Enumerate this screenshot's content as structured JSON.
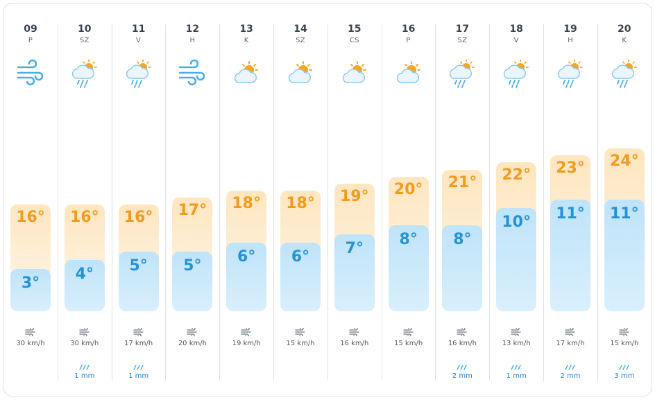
{
  "days": [
    {
      "num": "09",
      "wd": "P",
      "icon": "wind-icon",
      "high": "16°",
      "low": "3°",
      "high_val": 16,
      "low_val": 3,
      "wind": "30 km/h",
      "rain": ""
    },
    {
      "num": "10",
      "wd": "SZ",
      "icon": "rain-cloud-sun-icon",
      "high": "16°",
      "low": "4°",
      "high_val": 16,
      "low_val": 4,
      "wind": "30 km/h",
      "rain": "1 mm"
    },
    {
      "num": "11",
      "wd": "V",
      "icon": "rain-cloud-sun-icon",
      "high": "16°",
      "low": "5°",
      "high_val": 16,
      "low_val": 5,
      "wind": "17 km/h",
      "rain": "1 mm"
    },
    {
      "num": "12",
      "wd": "H",
      "icon": "wind-icon",
      "high": "17°",
      "low": "5°",
      "high_val": 17,
      "low_val": 5,
      "wind": "20 km/h",
      "rain": ""
    },
    {
      "num": "13",
      "wd": "K",
      "icon": "partly-cloudy-icon",
      "high": "18°",
      "low": "6°",
      "high_val": 18,
      "low_val": 6,
      "wind": "19 km/h",
      "rain": ""
    },
    {
      "num": "14",
      "wd": "SZ",
      "icon": "partly-cloudy-icon",
      "high": "18°",
      "low": "6°",
      "high_val": 18,
      "low_val": 6,
      "wind": "15 km/h",
      "rain": ""
    },
    {
      "num": "15",
      "wd": "CS",
      "icon": "partly-cloudy-icon",
      "high": "19°",
      "low": "7°",
      "high_val": 19,
      "low_val": 7,
      "wind": "16 km/h",
      "rain": ""
    },
    {
      "num": "16",
      "wd": "P",
      "icon": "partly-cloudy-icon",
      "high": "20°",
      "low": "8°",
      "high_val": 20,
      "low_val": 8,
      "wind": "15 km/h",
      "rain": ""
    },
    {
      "num": "17",
      "wd": "SZ",
      "icon": "rain-cloud-sun-icon",
      "high": "21°",
      "low": "8°",
      "high_val": 21,
      "low_val": 8,
      "wind": "16 km/h",
      "rain": "2 mm"
    },
    {
      "num": "18",
      "wd": "V",
      "icon": "rain-cloud-sun-icon",
      "high": "22°",
      "low": "10°",
      "high_val": 22,
      "low_val": 10,
      "wind": "13 km/h",
      "rain": "1 mm"
    },
    {
      "num": "19",
      "wd": "H",
      "icon": "rain-cloud-sun-icon",
      "high": "23°",
      "low": "11°",
      "high_val": 23,
      "low_val": 11,
      "wind": "17 km/h",
      "rain": "2 mm"
    },
    {
      "num": "20",
      "wd": "K",
      "icon": "rain-cloud-sun-icon",
      "high": "24°",
      "low": "11°",
      "high_val": 24,
      "low_val": 11,
      "wind": "15 km/h",
      "rain": "3 mm"
    }
  ],
  "colors": {
    "high_text": "#f49a1c",
    "low_text": "#2493d6",
    "rain_text": "#2a7fcf"
  }
}
